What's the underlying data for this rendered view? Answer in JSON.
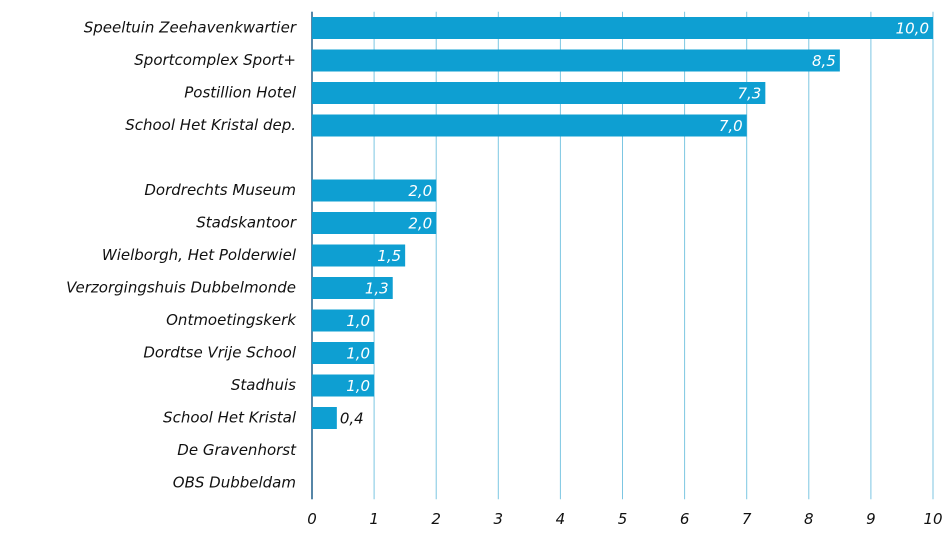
{
  "chart_data": {
    "type": "hbar",
    "categories": [
      "Speeltuin Zeehavenkwartier",
      "Sportcomplex Sport+",
      "Postillion Hotel",
      "School Het Kristal dep.",
      null,
      "Dordrechts Museum",
      "Stadskantoor",
      "Wielborgh, Het Polderwiel",
      "Verzorgingshuis Dubbelmonde",
      "Ontmoetingskerk",
      "Dordtse Vrije School",
      "Stadhuis",
      "School Het Kristal ",
      "De Gravenhorst",
      "OBS Dubbeldam"
    ],
    "values": [
      10.0,
      8.5,
      7.3,
      7.0,
      null,
      2.0,
      2.0,
      1.5,
      1.3,
      1.0,
      1.0,
      1.0,
      0.4,
      null,
      null
    ],
    "value_labels": [
      "10,0",
      "8,5",
      "7,3",
      "7,0",
      null,
      "2,0",
      "2,0",
      "1,5",
      "1,3",
      "1,0",
      "1,0",
      "1,0",
      "0,4",
      null,
      null
    ],
    "color": "#0e9fd2",
    "xlim": [
      0,
      10
    ],
    "xticks": [
      0,
      1,
      2,
      3,
      4,
      5,
      6,
      7,
      8,
      9,
      10
    ],
    "grid": true
  }
}
